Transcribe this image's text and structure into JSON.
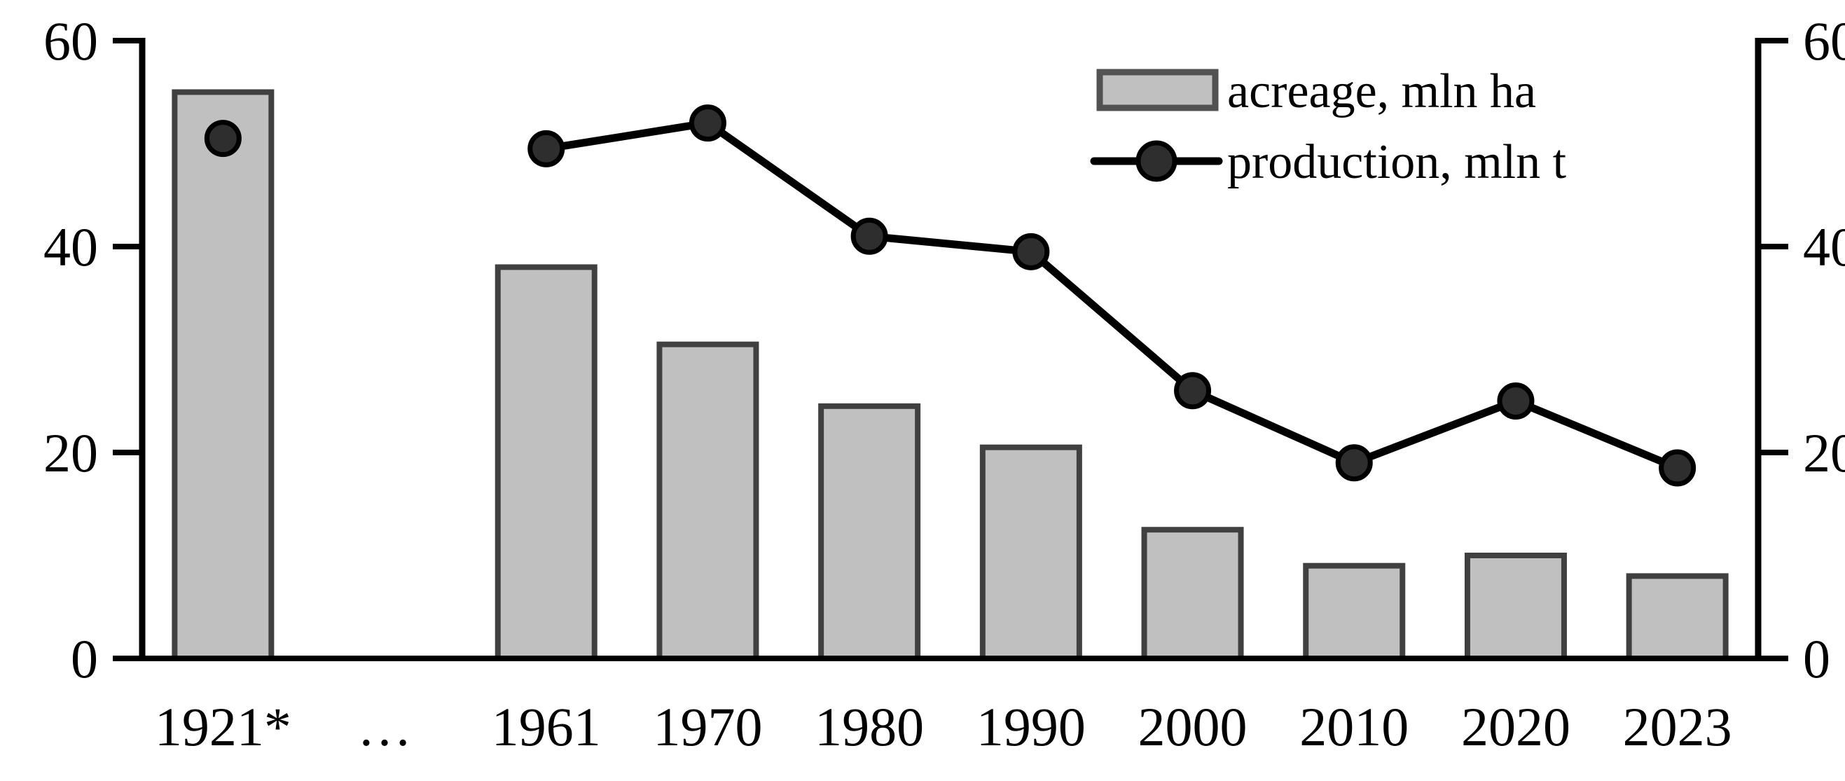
{
  "chart_data": {
    "type": "combo-bar-line",
    "title": "",
    "xlabel": "",
    "ylabel": "",
    "categories": [
      "1921*",
      "…",
      "1961",
      "1970",
      "1980",
      "1990",
      "2000",
      "2010",
      "2020",
      "2023"
    ],
    "series": [
      {
        "name": "acreage, mln ha",
        "type": "bar",
        "values": [
          55,
          null,
          38,
          30.5,
          24.5,
          20.5,
          12.5,
          9,
          10,
          8
        ]
      },
      {
        "name": "production, mln t",
        "type": "line",
        "values": [
          50.5,
          null,
          49.5,
          52,
          41,
          39.5,
          26,
          19,
          25,
          18.5
        ]
      }
    ],
    "ylim": [
      0,
      60
    ],
    "yticks": [
      0,
      20,
      40,
      60
    ],
    "ytick_labels": [
      "0",
      "20",
      "40",
      "60"
    ],
    "axes": {
      "left": true,
      "right": true,
      "bottom": true
    },
    "grid": false,
    "legend_position": "top-right",
    "colors": {
      "background": "#ffffff",
      "bar_fill": "#c0c0c0",
      "bar_stroke": "#404040",
      "line": "#000000",
      "marker_fill": "#2e2e2e",
      "marker_stroke": "#000000",
      "axis": "#000000",
      "text": "#000000",
      "legend_swatch_stroke": "#525252"
    }
  }
}
